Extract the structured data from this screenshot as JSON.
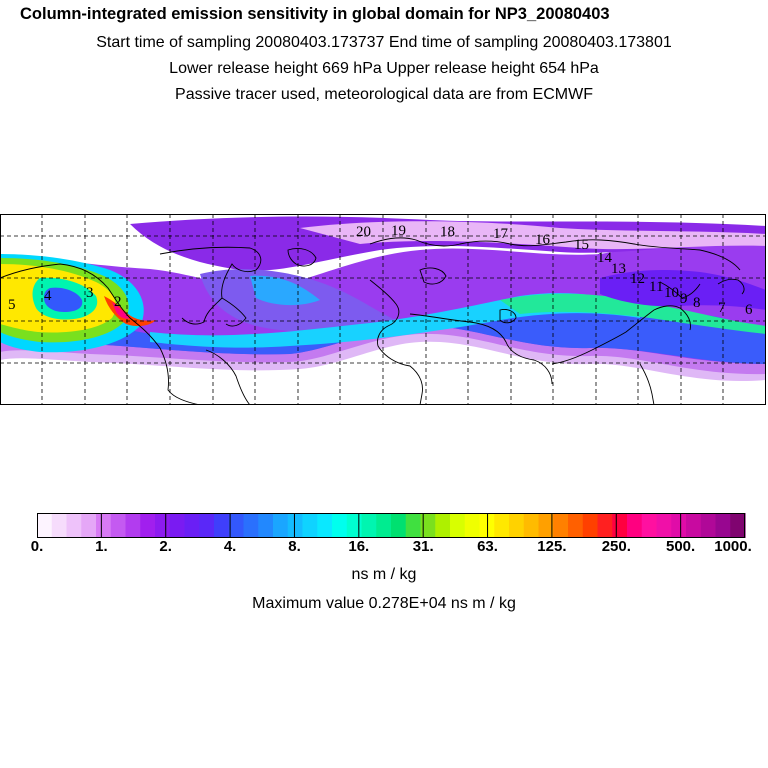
{
  "header": {
    "title": "Column-integrated emission sensitivity in global domain for NP3_20080403",
    "line1": "Start time of sampling 20080403.173737     End time of sampling 20080403.173801",
    "line2": "Lower release height  669 hPa        Upper release height  654 hPa",
    "line3": "Passive tracer used, meteorological data are from ECMWF"
  },
  "map": {
    "trajectory_labels": [
      "20",
      "19",
      "18",
      "17",
      "16",
      "15",
      "14",
      "13",
      "12",
      "11",
      "10",
      "9",
      "8",
      "7",
      "6",
      "5",
      "4",
      "3",
      "2"
    ]
  },
  "colorbar": {
    "ticks": [
      "0.",
      "1.",
      "2.",
      "4.",
      "8.",
      "16.",
      "31.",
      "63.",
      "125.",
      "250.",
      "500.",
      "1000."
    ],
    "unit": "ns m / kg",
    "max_value_text": "Maximum value  0.278E+04 ns m / kg",
    "colors": [
      "#fdf4ff",
      "#f6dcfc",
      "#eec2fa",
      "#e5a7f7",
      "#d77af4",
      "#c45af1",
      "#b23cef",
      "#a11fee",
      "#8d1bef",
      "#7a1bf2",
      "#6a1ff5",
      "#5a28f8",
      "#3f3ffb",
      "#3358fc",
      "#2a70fd",
      "#2288fe",
      "#1aa6ff",
      "#14bcff",
      "#0fd3ff",
      "#0ae8ff",
      "#00ffee",
      "#00ffd0",
      "#00f5b0",
      "#00ec90",
      "#00e070",
      "#40e040",
      "#7ae01e",
      "#aef000",
      "#d8ff00",
      "#f0ff00",
      "#ffff00",
      "#ffe800",
      "#ffd200",
      "#ffbb00",
      "#ffa000",
      "#ff8000",
      "#ff6000",
      "#ff4000",
      "#ff2020",
      "#ff0040",
      "#ff0080",
      "#ff10a0",
      "#f010a8",
      "#e00ca8",
      "#c80aa0",
      "#b00898",
      "#980690",
      "#800470"
    ]
  }
}
